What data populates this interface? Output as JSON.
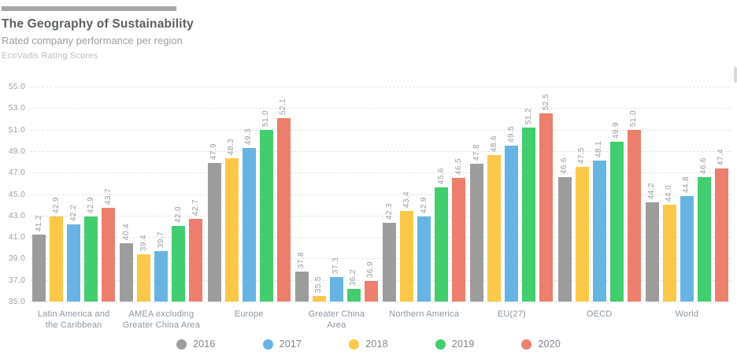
{
  "chart_data": {
    "type": "bar",
    "title": "The Geography of Sustainability",
    "subtitle": "Rated company performance per region",
    "source_note": "EcoVadis Rating Scores",
    "categories": [
      "Latin America and the Caribbean",
      "AMEA excluding Greater China Area",
      "Europe",
      "Greater China Area",
      "Northern America",
      "EU(27)",
      "OECD",
      "World"
    ],
    "category_label_lines": [
      [
        "Latin America and",
        "the Caribbean"
      ],
      [
        "AMEA excluding",
        "Greater China Area"
      ],
      [
        "Europe"
      ],
      [
        "Greater China",
        "Area"
      ],
      [
        "Northern America"
      ],
      [
        "EU(27)"
      ],
      [
        "OECD"
      ],
      [
        "World"
      ]
    ],
    "y_axis": {
      "min": 35.0,
      "max": 55.0,
      "step": 2.0,
      "tick_labels": [
        "55.0",
        "53.0",
        "51.0",
        "49.0",
        "47.0",
        "45.0",
        "43.0",
        "41.0",
        "39.0",
        "37.0",
        "35.0"
      ]
    },
    "series": [
      {
        "name": "2016",
        "color": "#9c9c9c",
        "values": [
          41.2,
          40.4,
          47.9,
          37.8,
          42.3,
          47.8,
          46.6,
          44.2
        ]
      },
      {
        "name": "2017",
        "color": "#67b4e3",
        "values": [
          42.2,
          39.7,
          49.3,
          37.3,
          42.9,
          49.5,
          48.1,
          44.8
        ]
      },
      {
        "name": "2018",
        "color": "#fbc84a",
        "values": [
          42.9,
          39.4,
          48.3,
          35.5,
          43.4,
          48.6,
          47.5,
          44.0
        ]
      },
      {
        "name": "2019",
        "color": "#42ce6f",
        "values": [
          42.9,
          42.0,
          51.0,
          36.2,
          45.6,
          51.2,
          49.9,
          46.6
        ]
      },
      {
        "name": "2020",
        "color": "#ec7f6d",
        "values": [
          43.7,
          42.7,
          52.1,
          36.9,
          46.5,
          52.5,
          51.0,
          47.4
        ]
      }
    ],
    "bar_order": [
      "2016",
      "2018",
      "2017",
      "2019",
      "2020"
    ],
    "legend_order": [
      "2016",
      "2017",
      "2018",
      "2019",
      "2020"
    ],
    "legend_position": "bottom",
    "grid": "horizontal dashed",
    "value_label_style": "rotated vertical, one decimal"
  },
  "decor": {
    "accent_bar_color": "#a7a7a7",
    "grid_color": "#e2e5e8",
    "value_label_color": "#939da6",
    "tick_label_color": "#9aa4ac",
    "category_label_color": "#8d97a0",
    "legend_text_color": "#7d868f"
  }
}
